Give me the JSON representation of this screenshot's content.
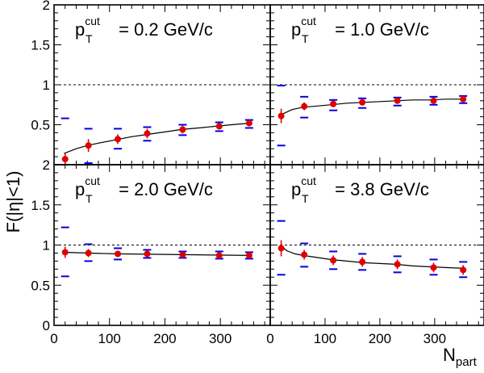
{
  "chart_data": {
    "type": "scatter",
    "ylabel": "F(|η|<1)",
    "xlabel_main": "N",
    "xlabel_sub": "part",
    "xlim": [
      0,
      390
    ],
    "ylim": [
      0,
      2
    ],
    "x_ticks": [
      "0",
      "100",
      "200",
      "300"
    ],
    "y_ticks": [
      "0",
      "0.5",
      "1",
      "1.5",
      "2"
    ],
    "reference_line": 1,
    "colors": {
      "points": "#e00000",
      "systematic": "#0000e0",
      "fit": "#000000"
    },
    "panels": [
      {
        "title_p": "p",
        "title_sup": "cut",
        "title_sub": "T",
        "title_value": " = 0.2 GeV/c",
        "x": [
          20,
          62,
          115,
          168,
          232,
          298,
          352
        ],
        "y": [
          0.07,
          0.24,
          0.32,
          0.39,
          0.44,
          0.48,
          0.52
        ],
        "stat_err": [
          0.07,
          0.08,
          0.06,
          0.06,
          0.05,
          0.04,
          0.04
        ],
        "sys_high": [
          0.58,
          0.45,
          0.45,
          0.47,
          0.5,
          0.53,
          0.56
        ],
        "sys_low": [
          0.0,
          0.02,
          0.2,
          0.3,
          0.37,
          0.42,
          0.46
        ],
        "fit": [
          [
            18,
            0.14
          ],
          [
            40,
            0.2
          ],
          [
            60,
            0.24
          ],
          [
            80,
            0.27
          ],
          [
            110,
            0.31
          ],
          [
            140,
            0.35
          ],
          [
            170,
            0.38
          ],
          [
            200,
            0.41
          ],
          [
            230,
            0.44
          ],
          [
            260,
            0.46
          ],
          [
            290,
            0.48
          ],
          [
            320,
            0.5
          ],
          [
            355,
            0.52
          ]
        ]
      },
      {
        "title_p": "p",
        "title_sup": "cut",
        "title_sub": "T",
        "title_value": " = 1.0 GeV/c",
        "x": [
          20,
          62,
          115,
          168,
          232,
          298,
          352
        ],
        "y": [
          0.61,
          0.73,
          0.76,
          0.78,
          0.8,
          0.8,
          0.82
        ],
        "stat_err": [
          0.09,
          0.05,
          0.04,
          0.04,
          0.03,
          0.03,
          0.03
        ],
        "sys_high": [
          0.99,
          0.85,
          0.81,
          0.83,
          0.84,
          0.85,
          0.86
        ],
        "sys_low": [
          0.24,
          0.59,
          0.68,
          0.71,
          0.74,
          0.75,
          0.77
        ],
        "fit": [
          [
            18,
            0.62
          ],
          [
            40,
            0.69
          ],
          [
            60,
            0.72
          ],
          [
            80,
            0.73
          ],
          [
            110,
            0.75
          ],
          [
            140,
            0.77
          ],
          [
            170,
            0.78
          ],
          [
            200,
            0.79
          ],
          [
            230,
            0.8
          ],
          [
            260,
            0.81
          ],
          [
            290,
            0.81
          ],
          [
            320,
            0.82
          ],
          [
            355,
            0.82
          ]
        ]
      },
      {
        "title_p": "p",
        "title_sup": "cut",
        "title_sub": "T",
        "title_value": " = 2.0 GeV/c",
        "x": [
          20,
          62,
          115,
          168,
          232,
          298,
          352
        ],
        "y": [
          0.91,
          0.9,
          0.89,
          0.89,
          0.88,
          0.87,
          0.87
        ],
        "stat_err": [
          0.07,
          0.05,
          0.04,
          0.04,
          0.04,
          0.04,
          0.04
        ],
        "sys_high": [
          1.22,
          1.01,
          0.96,
          0.94,
          0.92,
          0.92,
          0.91
        ],
        "sys_low": [
          0.61,
          0.8,
          0.82,
          0.84,
          0.84,
          0.83,
          0.83
        ],
        "fit": [
          [
            18,
            0.91
          ],
          [
            60,
            0.9
          ],
          [
            110,
            0.89
          ],
          [
            170,
            0.885
          ],
          [
            230,
            0.88
          ],
          [
            290,
            0.875
          ],
          [
            355,
            0.87
          ]
        ]
      },
      {
        "title_p": "p",
        "title_sup": "cut",
        "title_sub": "T",
        "title_value": " = 3.8 GeV/c",
        "x": [
          20,
          62,
          115,
          168,
          232,
          298,
          352
        ],
        "y": [
          0.96,
          0.88,
          0.81,
          0.79,
          0.76,
          0.72,
          0.69
        ],
        "stat_err": [
          0.1,
          0.06,
          0.06,
          0.06,
          0.06,
          0.06,
          0.06
        ],
        "sys_high": [
          1.3,
          1.02,
          0.92,
          0.89,
          0.86,
          0.82,
          0.79
        ],
        "sys_low": [
          0.63,
          0.73,
          0.7,
          0.69,
          0.66,
          0.63,
          0.6
        ],
        "fit": [
          [
            18,
            1.0
          ],
          [
            30,
            0.93
          ],
          [
            45,
            0.89
          ],
          [
            60,
            0.87
          ],
          [
            80,
            0.85
          ],
          [
            110,
            0.82
          ],
          [
            140,
            0.8
          ],
          [
            170,
            0.78
          ],
          [
            200,
            0.77
          ],
          [
            230,
            0.76
          ],
          [
            260,
            0.74
          ],
          [
            290,
            0.73
          ],
          [
            320,
            0.72
          ],
          [
            355,
            0.71
          ]
        ]
      }
    ]
  }
}
